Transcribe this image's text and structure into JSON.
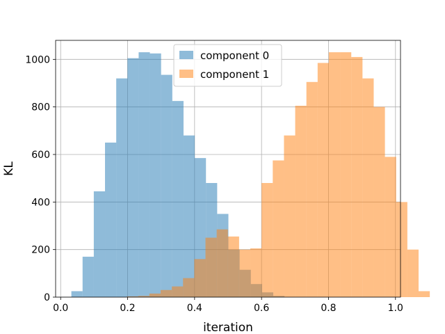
{
  "chart_data": {
    "type": "bar",
    "title": "",
    "xlabel": "iteration",
    "ylabel": "KL",
    "xlim": [
      -0.015,
      1.015
    ],
    "ylim": [
      0,
      1080
    ],
    "xticks": [
      0.0,
      0.2,
      0.4,
      0.6,
      0.8,
      1.0
    ],
    "xtick_labels": [
      "0.0",
      "0.2",
      "0.4",
      "0.6",
      "0.8",
      "1.0"
    ],
    "yticks": [
      0,
      200,
      400,
      600,
      800,
      1000
    ],
    "ytick_labels": [
      "0",
      "200",
      "400",
      "600",
      "800",
      "1000"
    ],
    "grid": true,
    "legend": "top-center",
    "series": [
      {
        "name": "component 0",
        "color": "#1f77b4",
        "alpha": 0.5,
        "bin_start": 0.032,
        "bin_width": 0.0335,
        "values": [
          25,
          170,
          445,
          650,
          920,
          1005,
          1030,
          1025,
          935,
          825,
          680,
          585,
          480,
          350,
          200,
          115,
          55,
          20,
          5
        ]
      },
      {
        "name": "component 1",
        "color": "#ff7f0e",
        "alpha": 0.5,
        "bin_start": 0.198,
        "bin_width": 0.0335,
        "values": [
          3,
          5,
          15,
          30,
          45,
          80,
          160,
          250,
          285,
          255,
          200,
          205,
          480,
          575,
          680,
          805,
          905,
          985,
          1030,
          1030,
          1010,
          920,
          800,
          590,
          400,
          200,
          25
        ]
      }
    ]
  }
}
